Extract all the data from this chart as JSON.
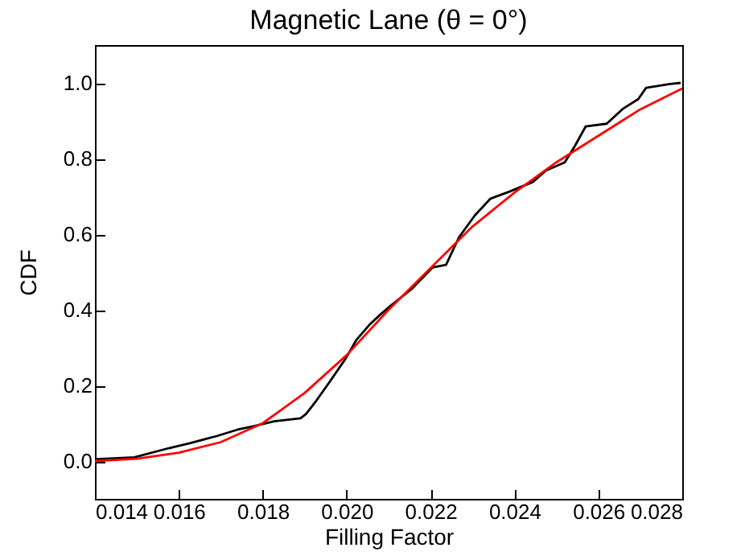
{
  "chart_data": {
    "type": "line",
    "title": "Magnetic Lane (θ = 0°)",
    "xlabel": "Filling Factor",
    "ylabel": "CDF",
    "xlim": [
      0.014,
      0.028
    ],
    "xticks": [
      0.014,
      0.016,
      0.018,
      {
        "value": 0.02,
        "label": "0.020"
      },
      0.022,
      0.024,
      0.026,
      0.028
    ],
    "ylim": [
      -0.1,
      1.1
    ],
    "yticks": [
      {
        "value": 0,
        "label": "0.0"
      },
      0.2,
      0.4,
      0.6,
      0.8,
      {
        "value": 1,
        "label": "1.0"
      }
    ],
    "grid": false,
    "line_style": "solid",
    "series": [
      {
        "color": "#000000",
        "x": [
          0.014,
          0.01425,
          0.01494,
          0.01576,
          0.01626,
          0.0169,
          0.0174,
          0.01777,
          0.01827,
          0.0189,
          0.01903,
          0.01928,
          0.0196,
          0.01997,
          0.02023,
          0.02054,
          0.0208,
          0.02104,
          0.02155,
          0.02205,
          0.02237,
          0.02268,
          0.02306,
          0.02343,
          0.02387,
          0.02444,
          0.02475,
          0.0252,
          0.02544,
          0.0257,
          0.0262,
          0.02658,
          0.02695,
          0.02714,
          0.02771,
          0.02796
        ],
        "values": [
          0.005,
          0.006,
          0.01,
          0.034,
          0.047,
          0.066,
          0.083,
          0.092,
          0.105,
          0.113,
          0.124,
          0.16,
          0.21,
          0.27,
          0.32,
          0.36,
          0.387,
          0.41,
          0.455,
          0.512,
          0.519,
          0.592,
          0.65,
          0.694,
          0.712,
          0.738,
          0.768,
          0.79,
          0.833,
          0.885,
          0.892,
          0.931,
          0.957,
          0.987,
          0.997,
          1.0
        ]
      },
      {
        "color": "#ff0000",
        "x": [
          0.014,
          0.015,
          0.016,
          0.017,
          0.018,
          0.019,
          0.02,
          0.021,
          0.022,
          0.023,
          0.024,
          0.025,
          0.026,
          0.027,
          0.028
        ],
        "values": [
          0.0,
          0.006,
          0.022,
          0.05,
          0.1,
          0.18,
          0.28,
          0.4,
          0.51,
          0.62,
          0.71,
          0.79,
          0.86,
          0.93,
          0.985
        ]
      }
    ]
  }
}
